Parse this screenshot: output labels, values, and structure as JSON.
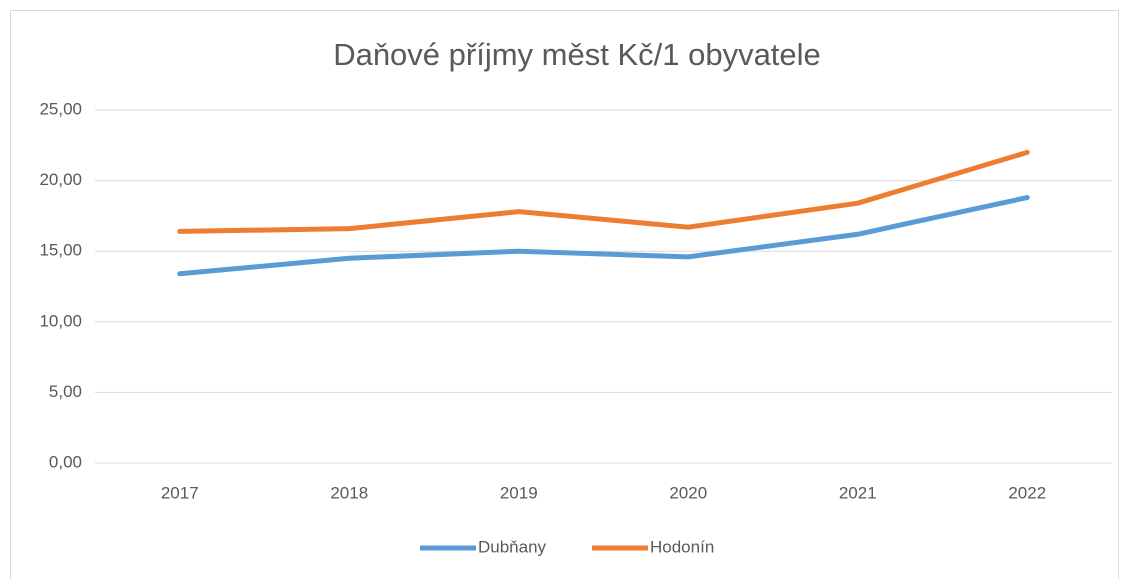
{
  "chart_data": {
    "type": "line",
    "title": "Daňové příjmy měst Kč/1 obyvatele",
    "categories": [
      "2017",
      "2018",
      "2019",
      "2020",
      "2021",
      "2022"
    ],
    "series": [
      {
        "name": "Dubňany",
        "color": "#5b9bd5",
        "values": [
          13.4,
          14.5,
          15.0,
          14.6,
          16.2,
          18.8
        ]
      },
      {
        "name": "Hodonín",
        "color": "#ed7d31",
        "values": [
          16.4,
          16.6,
          17.8,
          16.7,
          18.4,
          22.0
        ]
      }
    ],
    "ylim": [
      0,
      25
    ],
    "yticks": [
      {
        "value": 0,
        "label": "0,00"
      },
      {
        "value": 5,
        "label": "5,00"
      },
      {
        "value": 10,
        "label": "10,00"
      },
      {
        "value": 15,
        "label": "15,00"
      },
      {
        "value": 20,
        "label": "20,00"
      },
      {
        "value": 25,
        "label": "25,00"
      }
    ],
    "grid": true,
    "legend": "bottom"
  }
}
